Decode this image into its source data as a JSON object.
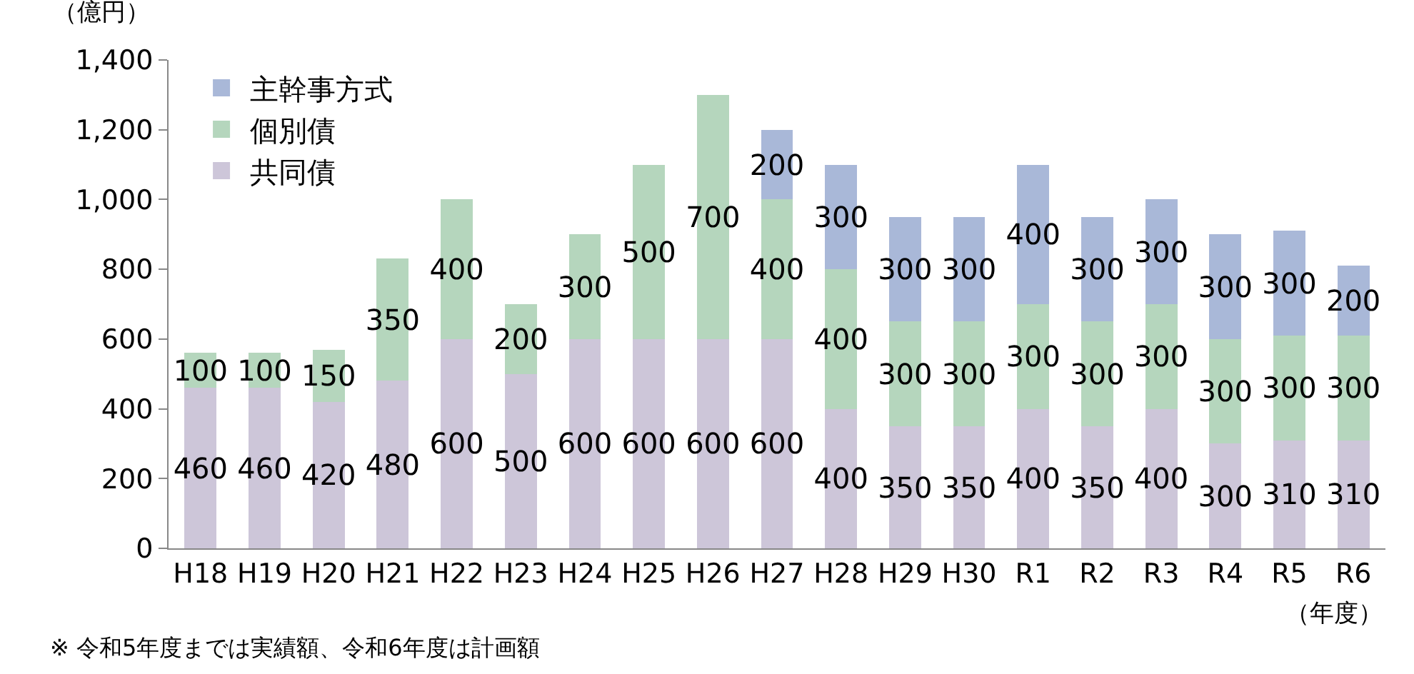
{
  "chart_data": {
    "type": "bar",
    "stacked": true,
    "ylabel": "（億円）",
    "xlabel": "（年度）",
    "categories": [
      "H18",
      "H19",
      "H20",
      "H21",
      "H22",
      "H23",
      "H24",
      "H25",
      "H26",
      "H27",
      "H28",
      "H29",
      "H30",
      "R1",
      "R2",
      "R3",
      "R4",
      "R5",
      "R6"
    ],
    "series": [
      {
        "name": "共同債",
        "color": "#cdc6d9",
        "values": [
          460,
          460,
          420,
          480,
          600,
          500,
          600,
          600,
          600,
          600,
          400,
          350,
          350,
          400,
          350,
          400,
          300,
          310,
          310
        ]
      },
      {
        "name": "個別債",
        "color": "#b5d6bd",
        "values": [
          100,
          100,
          150,
          350,
          400,
          200,
          300,
          500,
          700,
          400,
          400,
          300,
          300,
          300,
          300,
          300,
          300,
          300,
          300
        ]
      },
      {
        "name": "主幹事方式",
        "color": "#a9b8d8",
        "values": [
          null,
          null,
          null,
          null,
          null,
          null,
          null,
          null,
          null,
          200,
          300,
          300,
          300,
          400,
          300,
          300,
          300,
          300,
          200
        ]
      }
    ],
    "ylim": [
      0,
      1400
    ],
    "yticks": [
      0,
      200,
      400,
      600,
      800,
      {
        "value": 1000,
        "label": "1,000"
      },
      {
        "value": 1200,
        "label": "1,200"
      },
      {
        "value": 1400,
        "label": "1,400"
      }
    ],
    "data_labels": true,
    "grid": false,
    "legend": "top left",
    "annotations": [
      "※ 令和5年度までは実績額、令和6年度は計画額"
    ]
  }
}
